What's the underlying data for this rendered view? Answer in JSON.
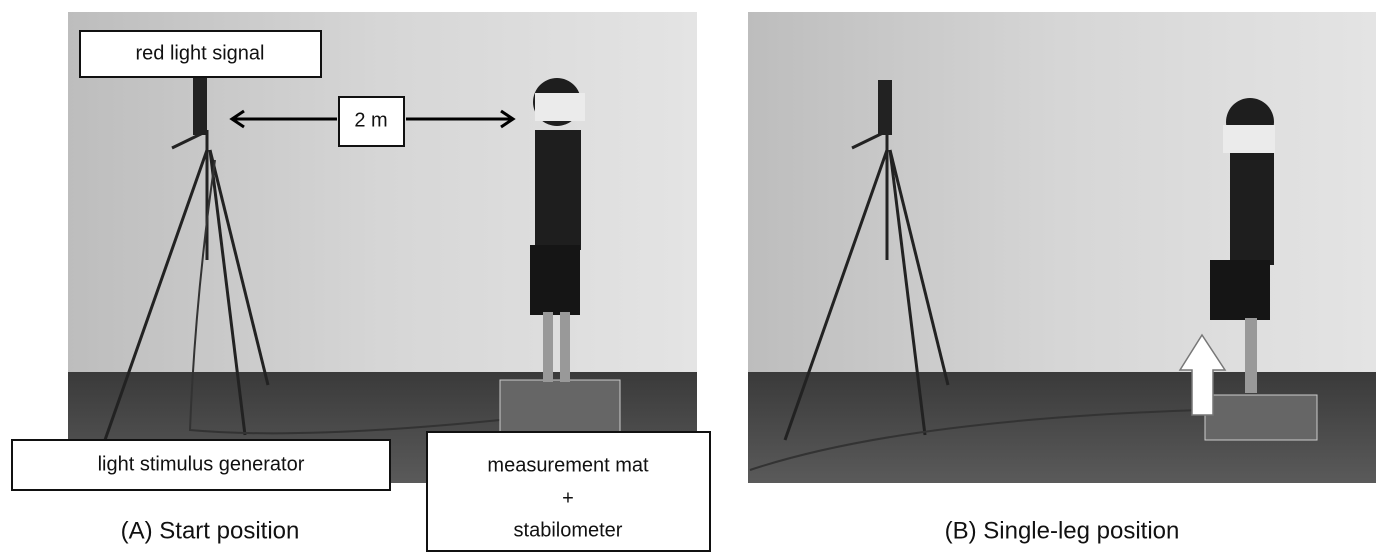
{
  "panel_a": {
    "caption": "(A) Start position",
    "labels": {
      "red_light": "red light signal",
      "distance": "2 m",
      "generator": "light stimulus generator",
      "mat": [
        "measurement mat",
        "+",
        "stabilometer"
      ]
    }
  },
  "panel_b": {
    "caption": "(B) Single-leg position"
  }
}
